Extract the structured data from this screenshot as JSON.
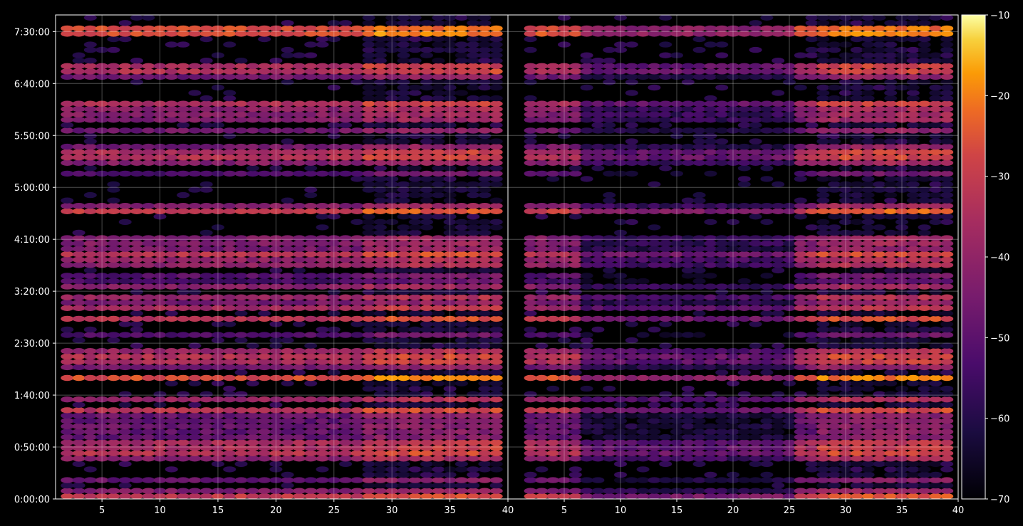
{
  "chart_data": {
    "type": "heatmap",
    "title": "",
    "xlabel": "",
    "ylabel": "",
    "panels": [
      {
        "name": "",
        "xlim": [
          1,
          40
        ],
        "xticks": [
          5,
          10,
          15,
          20,
          25,
          30,
          35,
          40
        ]
      },
      {
        "name": "",
        "xlim": [
          0,
          40
        ],
        "xticks": [
          5,
          10,
          15,
          20,
          25,
          30,
          35,
          40
        ]
      }
    ],
    "ylim_seconds": [
      0,
      27960
    ],
    "yticks": [
      {
        "label": "0:00:00",
        "seconds": 0
      },
      {
        "label": "0:50:00",
        "seconds": 3000
      },
      {
        "label": "1:40:00",
        "seconds": 6000
      },
      {
        "label": "2:30:00",
        "seconds": 9000
      },
      {
        "label": "3:20:00",
        "seconds": 12000
      },
      {
        "label": "4:10:00",
        "seconds": 15000
      },
      {
        "label": "5:00:00",
        "seconds": 18000
      },
      {
        "label": "5:50:00",
        "seconds": 21000
      },
      {
        "label": "6:40:00",
        "seconds": 24000
      },
      {
        "label": "7:30:00",
        "seconds": 27000
      }
    ],
    "grid": true,
    "colorbar": {
      "colormap": "inferno",
      "min": -70,
      "max": -10,
      "ticks": [
        -10,
        -20,
        -30,
        -40,
        -50,
        -60,
        -70
      ]
    },
    "bands_seconds": [
      {
        "t": 27000,
        "level": -22
      },
      {
        "t": 24840,
        "level": -30
      },
      {
        "t": 24360,
        "level": -46
      },
      {
        "t": 22860,
        "level": -34
      },
      {
        "t": 22380,
        "level": -38
      },
      {
        "t": 21840,
        "level": -42
      },
      {
        "t": 21300,
        "level": -46
      },
      {
        "t": 20220,
        "level": -42
      },
      {
        "t": 19860,
        "level": -30
      },
      {
        "t": 19380,
        "level": -42
      },
      {
        "t": 18780,
        "level": -52
      },
      {
        "t": 17040,
        "level": -40
      },
      {
        "t": 16560,
        "level": -28
      },
      {
        "t": 15120,
        "level": -42
      },
      {
        "t": 14640,
        "level": -40
      },
      {
        "t": 14100,
        "level": -32
      },
      {
        "t": 13680,
        "level": -36
      },
      {
        "t": 12780,
        "level": -48
      },
      {
        "t": 12180,
        "level": -40
      },
      {
        "t": 11760,
        "level": -36
      },
      {
        "t": 11280,
        "level": -44
      },
      {
        "t": 10920,
        "level": -34
      },
      {
        "t": 10500,
        "level": -30
      },
      {
        "t": 9480,
        "level": -52
      },
      {
        "t": 8520,
        "level": -38
      },
      {
        "t": 8100,
        "level": -30
      },
      {
        "t": 7620,
        "level": -46
      },
      {
        "t": 6900,
        "level": -24
      },
      {
        "t": 5640,
        "level": -36
      },
      {
        "t": 5160,
        "level": -32
      },
      {
        "t": 4680,
        "level": -44
      },
      {
        "t": 4140,
        "level": -46
      },
      {
        "t": 3720,
        "level": -44
      },
      {
        "t": 3180,
        "level": -34
      },
      {
        "t": 2760,
        "level": -30
      },
      {
        "t": 2280,
        "level": -40
      },
      {
        "t": 1080,
        "level": -48
      },
      {
        "t": 540,
        "level": -42
      },
      {
        "t": 120,
        "level": -30
      }
    ]
  }
}
